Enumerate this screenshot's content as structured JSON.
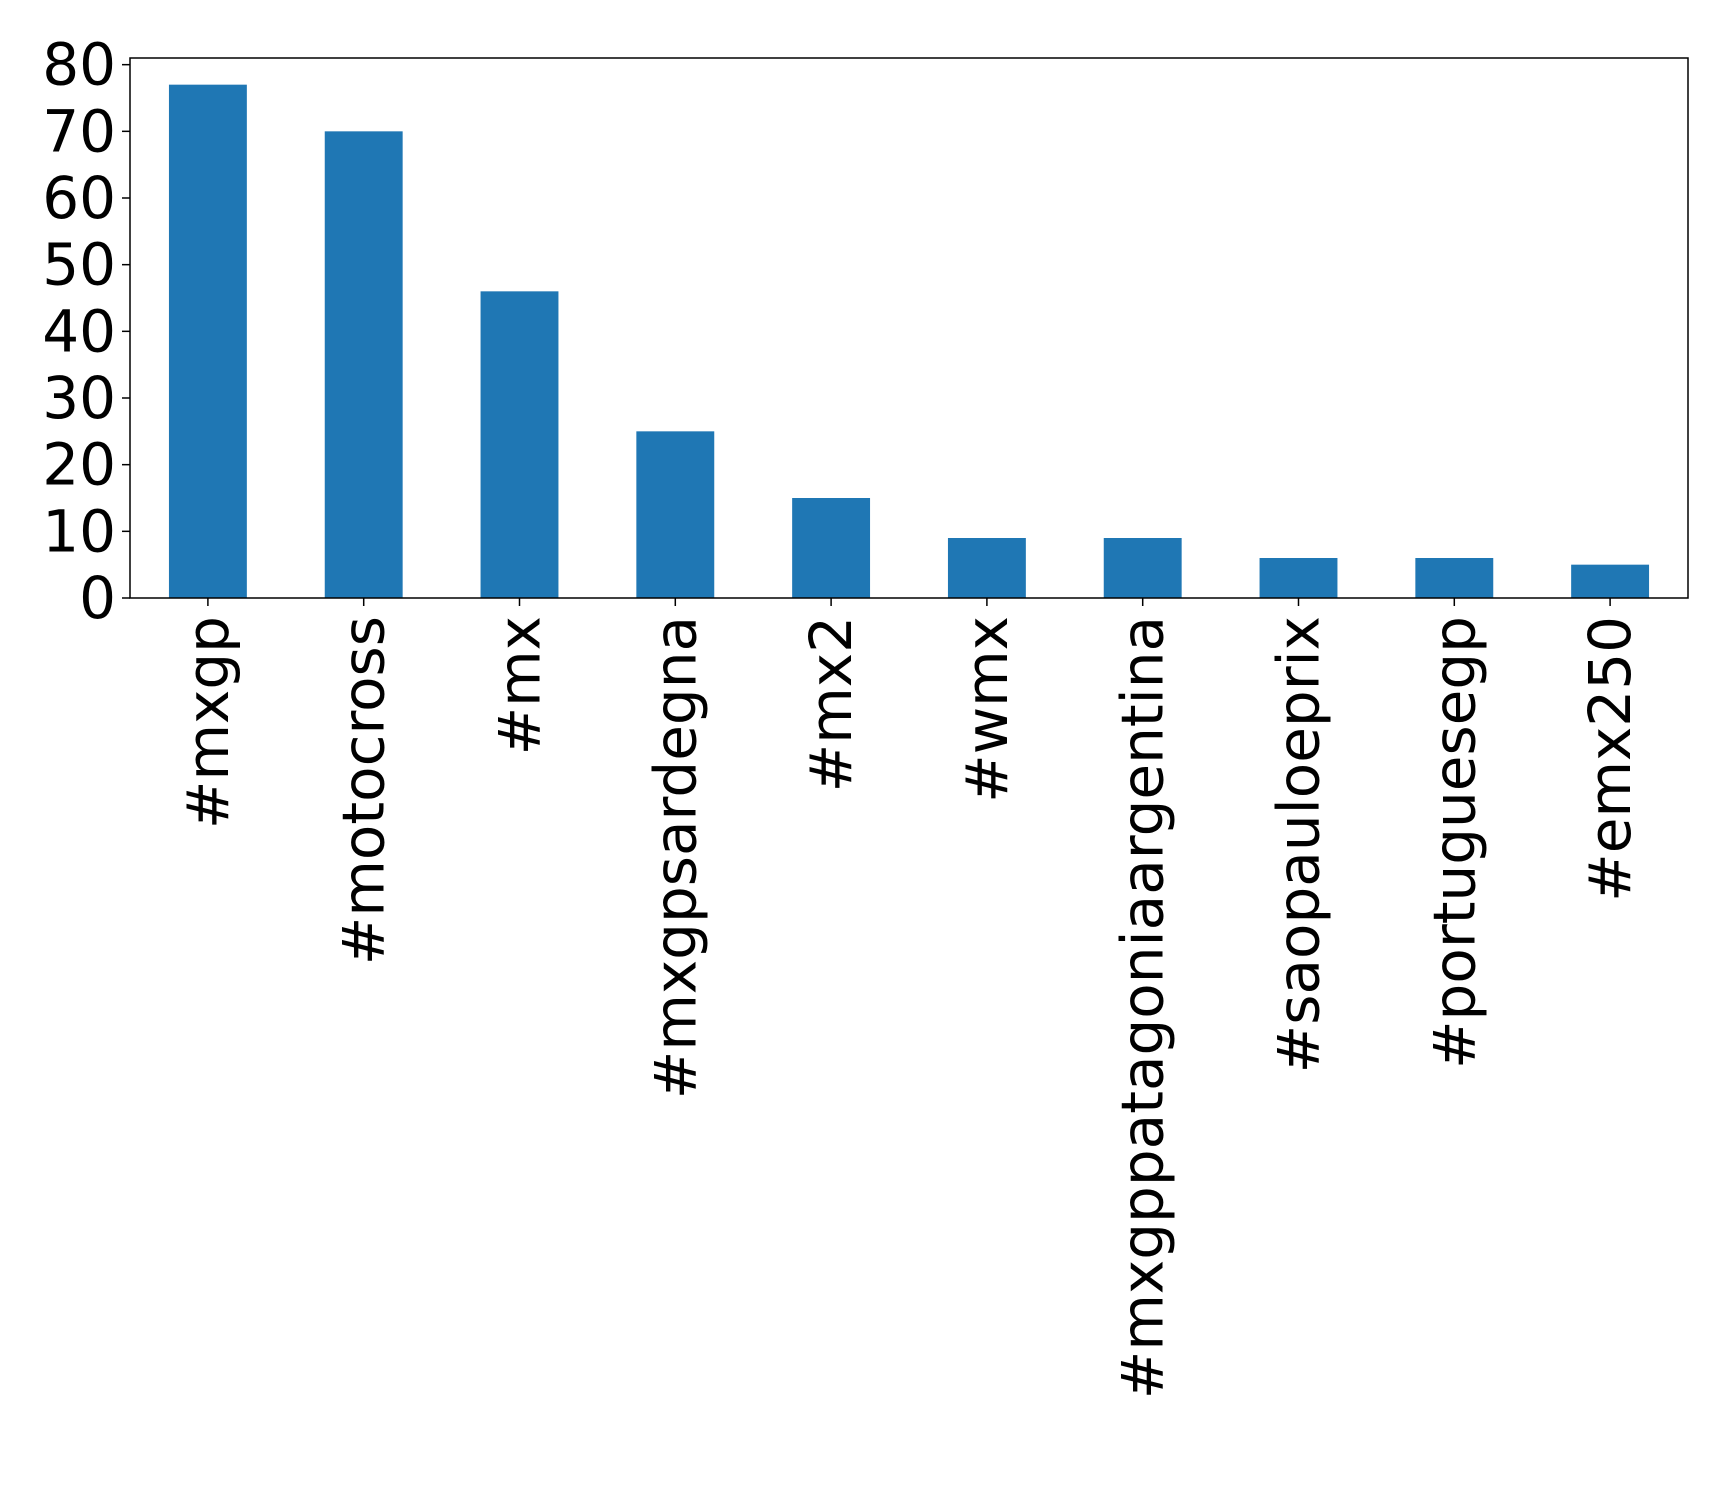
{
  "chart_data": {
    "type": "bar",
    "title": "",
    "xlabel": "",
    "ylabel": "",
    "categories": [
      "#mxgp",
      "#motocross",
      "#mx",
      "#mxgpsardegna",
      "#mx2",
      "#wmx",
      "#mxgppatagoniaargentina",
      "#saopauloeprix",
      "#portuguesegp",
      "#emx250"
    ],
    "values": [
      77,
      70,
      46,
      25,
      15,
      9,
      9,
      6,
      6,
      5
    ],
    "ylim": [
      0,
      81
    ],
    "yticks": [
      0,
      10,
      20,
      30,
      40,
      50,
      60,
      70,
      80
    ],
    "grid": false,
    "legend": "none",
    "bar_color": "#1f77b4"
  }
}
